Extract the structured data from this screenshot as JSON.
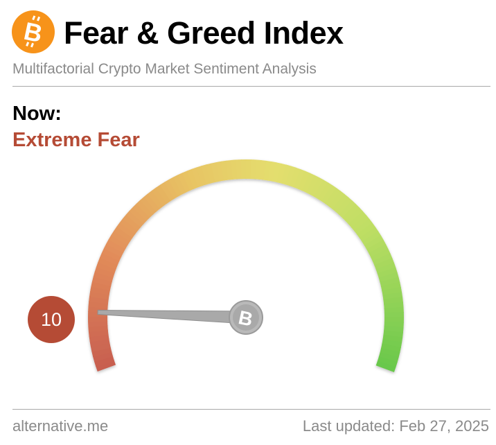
{
  "header": {
    "logo_icon": "bitcoin-icon",
    "title": "Fear & Greed Index",
    "subtitle": "Multifactorial Crypto Market Sentiment Analysis"
  },
  "now": {
    "label": "Now:",
    "classification": "Extreme Fear",
    "value": "10"
  },
  "gauge": {
    "min": 0,
    "max": 100,
    "value": 10,
    "needle_icon": "bitcoin-icon"
  },
  "footer": {
    "source": "alternative.me",
    "last_updated": "Last updated: Feb 27, 2025"
  },
  "colors": {
    "bitcoin_orange": "#f7931a",
    "extreme_fear": "#b54b35",
    "greed_green": "#6cc24a",
    "neutral_yellow": "#e3df5a",
    "fear_orange": "#e88b4f"
  }
}
